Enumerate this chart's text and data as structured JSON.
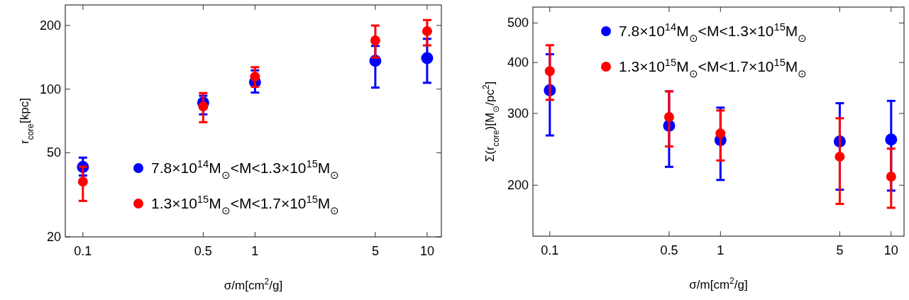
{
  "chart_data": [
    {
      "type": "scatter",
      "xlabel": "σ/m[cm$^{2}$/g]",
      "ylabel": "r$_{core}$[kpc]",
      "log": "xy",
      "xlim": [
        0.079,
        12.1
      ],
      "ylim": [
        20,
        250
      ],
      "xticks": [
        0.1,
        0.5,
        1,
        5,
        10
      ],
      "yticks": [
        20,
        50,
        100,
        200
      ],
      "grid": false,
      "legend": "bottom right",
      "marker": "circle",
      "x": [
        0.1,
        0.5,
        1,
        5,
        10
      ],
      "series": [
        {
          "name": "7.8×10$^{14}$M$_{⊙}$<M<1.3×10$^{15}$M$_{⊙}$",
          "color": "#0000ff",
          "values": [
            42.8,
            86.2,
            108,
            136,
            140
          ],
          "errors": [
            [
              39,
              47.4
            ],
            [
              75.9,
              93
            ],
            [
              96.3,
              122.7
            ],
            [
              101.6,
              160
            ],
            [
              107,
              173
            ]
          ]
        },
        {
          "name": "1.3×10$^{15}$M$_{⊙}$<M<1.7×10$^{15}$M$_{⊙}$",
          "color": "#ff0000",
          "values": [
            36.5,
            82.8,
            114.5,
            170,
            188
          ],
          "errors": [
            [
              29.6,
              43
            ],
            [
              69.8,
              95.7
            ],
            [
              102.6,
              127
            ],
            [
              141,
              200
            ],
            [
              161,
              212
            ]
          ]
        }
      ]
    },
    {
      "type": "scatter",
      "xlabel": "σ/m[cm$^{2}$/g]",
      "ylabel": "Σ(r$_{core}$)[M$_{⊙}$/pc$^{2}$]",
      "log": "xy",
      "xlim": [
        0.0796,
        11.9
      ],
      "ylim": [
        150,
        547
      ],
      "xticks": [
        0.1,
        0.5,
        1,
        5,
        10
      ],
      "yticks": [
        200,
        300,
        400,
        500
      ],
      "grid": false,
      "legend": "top right",
      "marker": "circle",
      "x": [
        0.1,
        0.5,
        1,
        5,
        10
      ],
      "series": [
        {
          "name": "7.8×10$^{14}$M$_{⊙}$<M<1.3×10$^{15}$M$_{⊙}$",
          "color": "#0000ff",
          "values": [
            342,
            280,
            258,
            256,
            259
          ],
          "errors": [
            [
              265,
              419
            ],
            [
              222,
              340
            ],
            [
              206,
              310
            ],
            [
              195,
              318
            ],
            [
              194,
              322
            ]
          ]
        },
        {
          "name": "1.3×10$^{15}$M$_{⊙}$<M<1.7×10$^{15}$M$_{⊙}$",
          "color": "#ff0000",
          "values": [
            381,
            294,
            268,
            235,
            210
          ],
          "errors": [
            [
              324,
              441
            ],
            [
              249,
              340
            ],
            [
              230,
              305
            ],
            [
              180,
              292
            ],
            [
              176,
              246
            ]
          ]
        }
      ]
    }
  ]
}
